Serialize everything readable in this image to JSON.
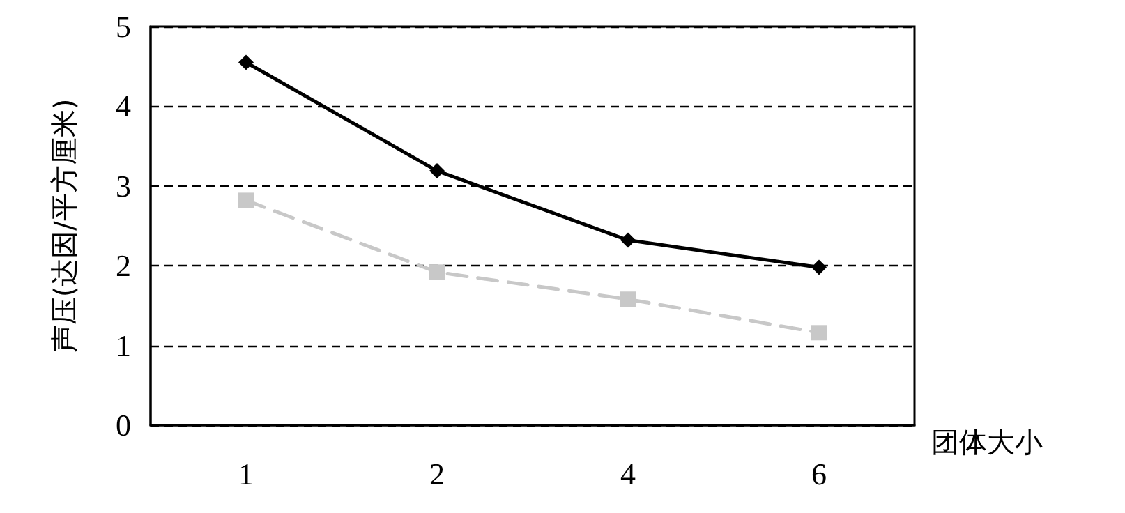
{
  "chart_data": {
    "type": "line",
    "ylabel": "声压(达因/平方厘米)",
    "xlabel": "团体大小",
    "categories": [
      "1",
      "2",
      "4",
      "6"
    ],
    "series": [
      {
        "color": "#000000",
        "values": [
          4.55,
          3.19,
          2.32,
          1.98
        ],
        "marker": "diamond",
        "line_style": "solid"
      },
      {
        "color": "#c8c8c8",
        "values": [
          2.82,
          1.92,
          1.58,
          1.16
        ],
        "marker": "square",
        "line_style": "dashed"
      }
    ],
    "ylim": [
      0,
      5
    ],
    "yticks": [
      0,
      1,
      2,
      3,
      4,
      5
    ],
    "grid": "y"
  }
}
